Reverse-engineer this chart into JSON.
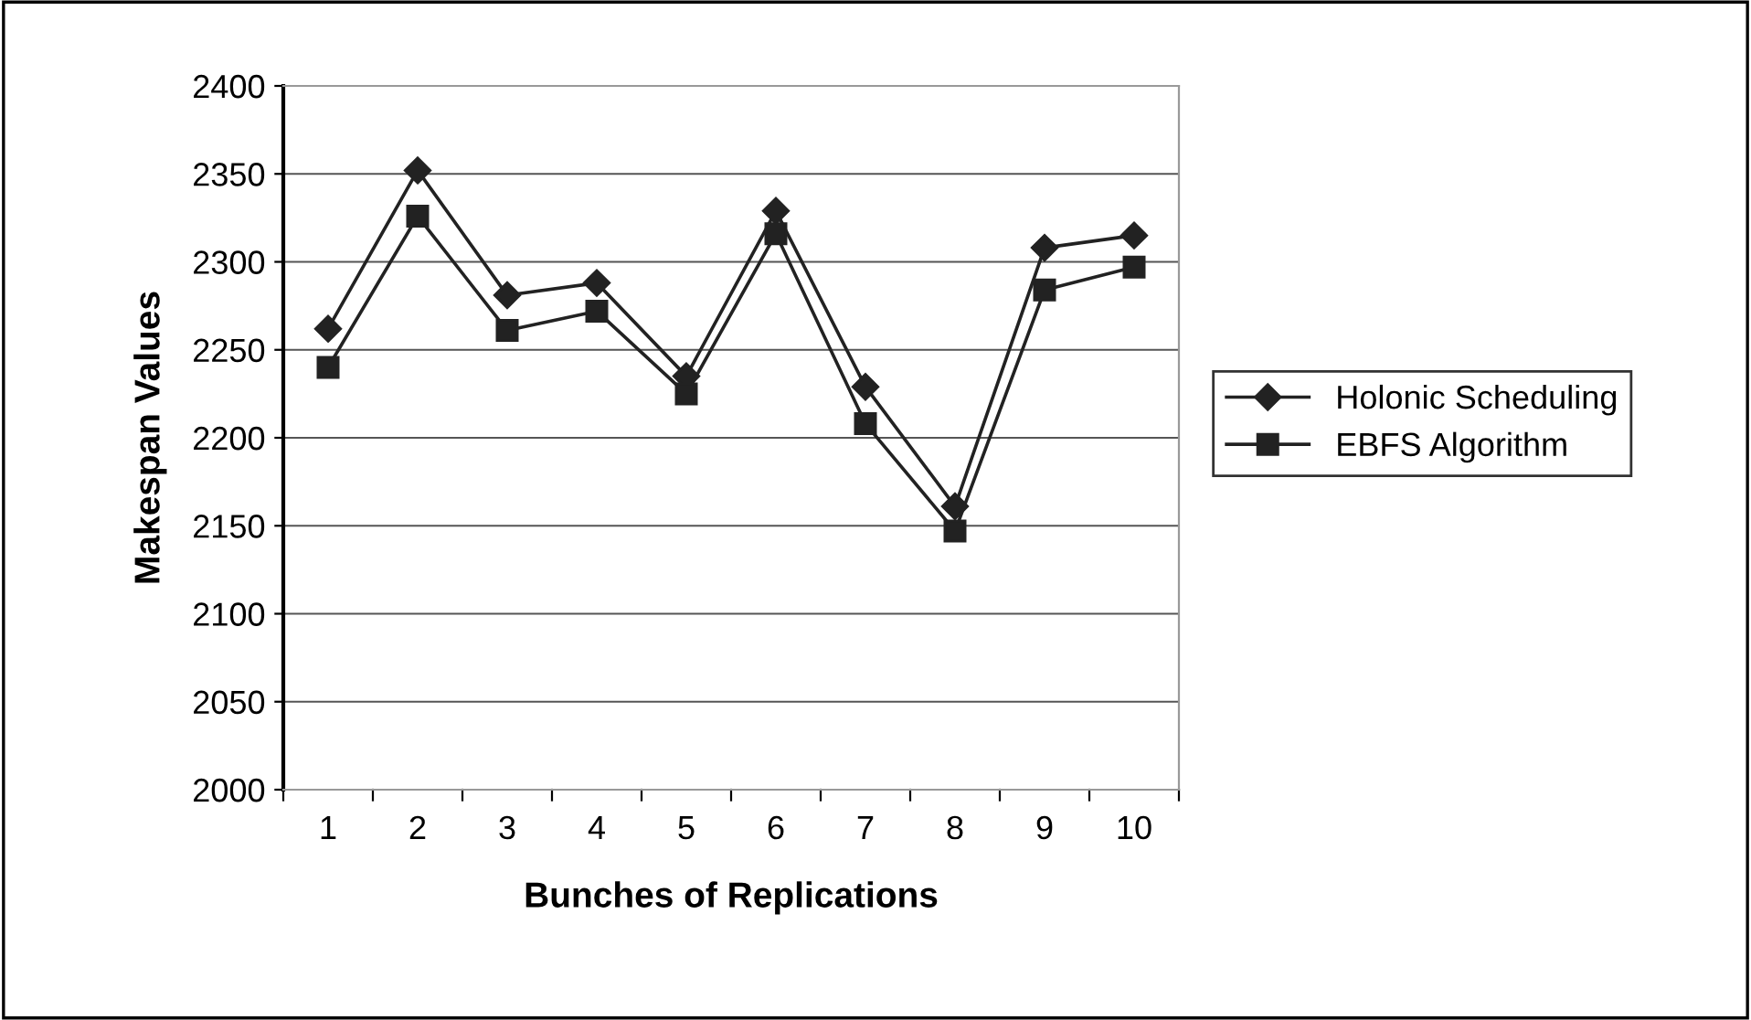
{
  "chart_data": {
    "type": "line",
    "xlabel": "Bunches of Replications",
    "ylabel": "Makespan Values",
    "categories": [
      "1",
      "2",
      "3",
      "4",
      "5",
      "6",
      "7",
      "8",
      "9",
      "10"
    ],
    "series": [
      {
        "name": "Holonic Scheduling",
        "color": "#222222",
        "marker": "diamond",
        "values": [
          2262,
          2352,
          2281,
          2288,
          2235,
          2329,
          2229,
          2161,
          2308,
          2315
        ]
      },
      {
        "name": "EBFS Algorithm",
        "color": "#222222",
        "marker": "square",
        "values": [
          2240,
          2326,
          2261,
          2272,
          2225,
          2316,
          2208,
          2147,
          2284,
          2297
        ]
      }
    ],
    "ylim": [
      2000,
      2400
    ],
    "yticks": [
      2000,
      2050,
      2100,
      2150,
      2200,
      2250,
      2300,
      2350,
      2400
    ],
    "grid": "y",
    "legend": "right",
    "line_style": "solid"
  }
}
